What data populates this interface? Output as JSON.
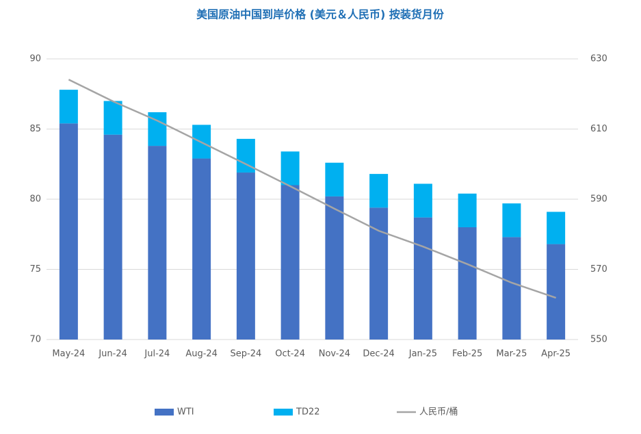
{
  "chart_data": {
    "type": "bar",
    "title": "美国原油中国到岸价格 (美元＆人民币) 按装货月份",
    "categories": [
      "May-24",
      "Jun-24",
      "Jul-24",
      "Aug-24",
      "Sep-24",
      "Oct-24",
      "Nov-24",
      "Dec-24",
      "Jan-25",
      "Feb-25",
      "Mar-25",
      "Apr-25"
    ],
    "series": [
      {
        "name": "WTI",
        "color": "#4472c4",
        "stack": true,
        "values": [
          85.4,
          84.6,
          83.8,
          82.9,
          81.9,
          81.0,
          80.2,
          79.4,
          78.7,
          78.0,
          77.3,
          76.8
        ]
      },
      {
        "name": "TD22",
        "color": "#00b0f0",
        "stack": true,
        "values": [
          2.4,
          2.4,
          2.4,
          2.4,
          2.4,
          2.4,
          2.4,
          2.4,
          2.4,
          2.4,
          2.4,
          2.3
        ]
      },
      {
        "name": "人民币/桶",
        "color": "#a5a5a5",
        "type": "line",
        "axis": "y2",
        "values": [
          624.1,
          617.9,
          612.4,
          606.2,
          600.0,
          593.7,
          587.3,
          581.0,
          576.5,
          571.5,
          566.2,
          561.9
        ]
      }
    ],
    "ylim": [
      70,
      90
    ],
    "yticks": [
      70,
      75,
      80,
      85,
      90
    ],
    "y2lim": [
      550,
      630
    ],
    "y2ticks": [
      550,
      570,
      590,
      610,
      630
    ],
    "grid": true,
    "legend": "bottom"
  }
}
